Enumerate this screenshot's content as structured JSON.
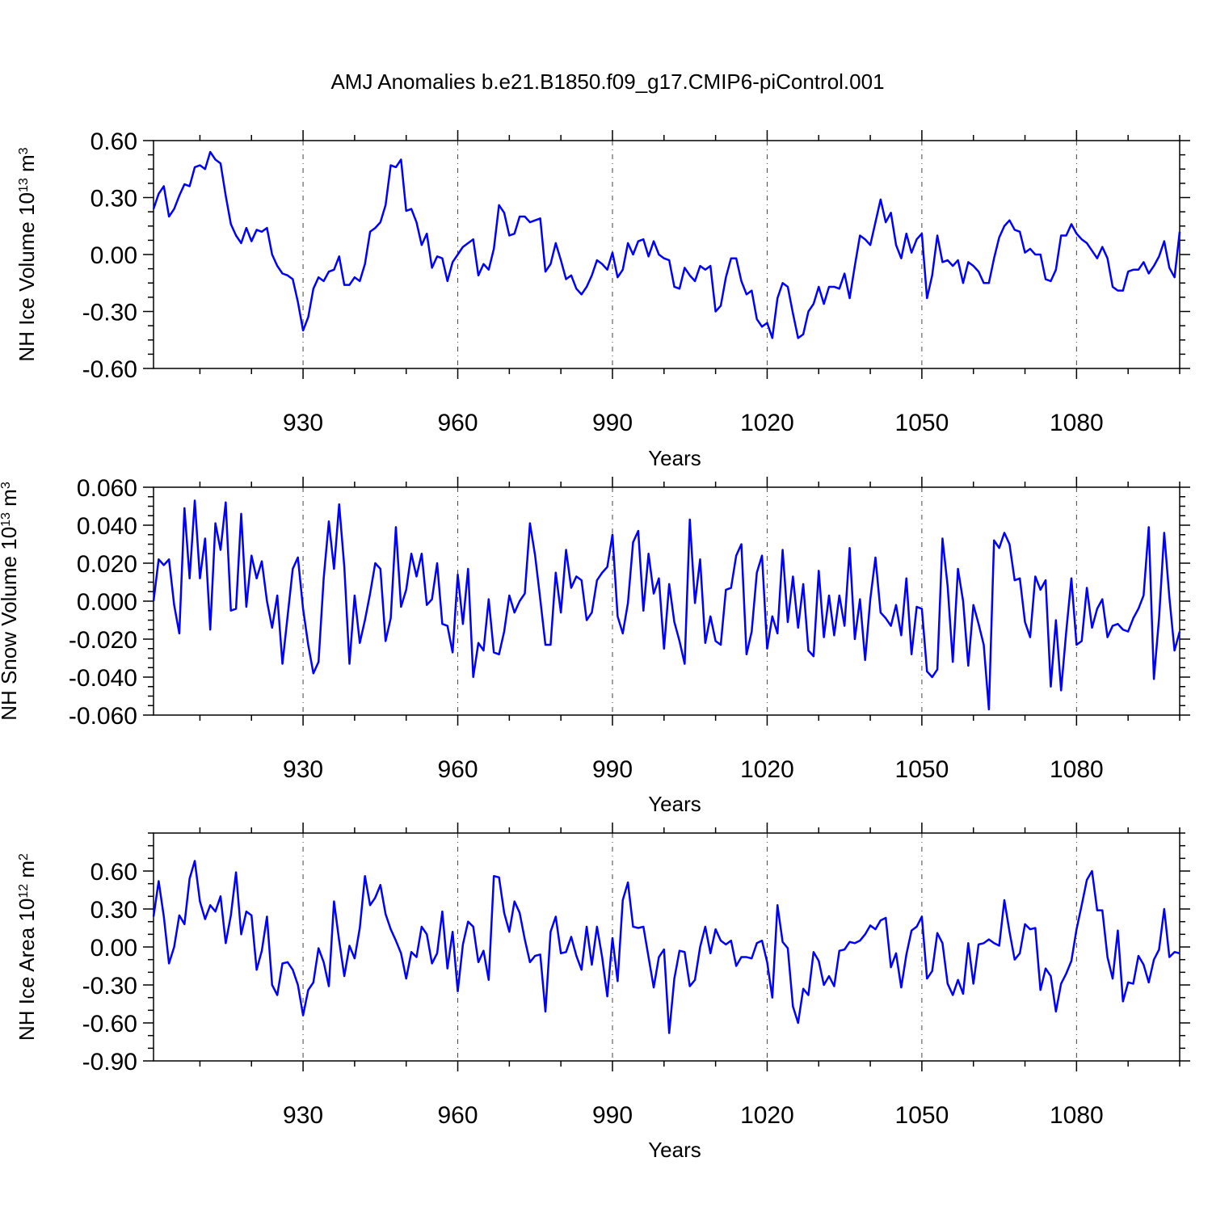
{
  "title": "AMJ Anomalies b.e21.B1850.f09_g17.CMIP6-piControl.001",
  "chart_data": [
    {
      "type": "line",
      "series_name": "NH Ice Volume",
      "ylabel": "NH Ice Volume",
      "ylabel_base": "10",
      "ylabel_exp": "13",
      "ylabel_unit": "m",
      "ylabel_unit_exp": "3",
      "xlabel": "Years",
      "xlim": [
        901,
        1100
      ],
      "ylim": [
        -0.6,
        0.6
      ],
      "yticks": [
        -0.6,
        -0.3,
        0.0,
        0.3,
        0.6
      ],
      "ytick_labels": [
        "-0.60",
        "-0.30",
        "0.00",
        "0.30",
        "0.60"
      ],
      "yminor_step": 0.075,
      "xticks": [
        930,
        960,
        990,
        1020,
        1050,
        1080
      ],
      "xtick_labels": [
        "930",
        "960",
        "990",
        "1020",
        "1050",
        "1080"
      ],
      "x_start": 901,
      "values": [
        0.24,
        0.32,
        0.36,
        0.2,
        0.24,
        0.31,
        0.37,
        0.36,
        0.46,
        0.47,
        0.45,
        0.54,
        0.5,
        0.48,
        0.31,
        0.16,
        0.1,
        0.06,
        0.14,
        0.07,
        0.13,
        0.12,
        0.14,
        0.0,
        -0.06,
        -0.1,
        -0.11,
        -0.13,
        -0.25,
        -0.4,
        -0.33,
        -0.18,
        -0.12,
        -0.14,
        -0.09,
        -0.08,
        -0.01,
        -0.16,
        -0.16,
        -0.12,
        -0.14,
        -0.05,
        0.12,
        0.14,
        0.17,
        0.26,
        0.47,
        0.46,
        0.5,
        0.23,
        0.24,
        0.17,
        0.05,
        0.11,
        -0.07,
        -0.01,
        -0.02,
        -0.14,
        -0.04,
        0.0,
        0.04,
        0.06,
        0.08,
        -0.11,
        -0.05,
        -0.08,
        0.03,
        0.26,
        0.22,
        0.1,
        0.11,
        0.2,
        0.2,
        0.17,
        0.18,
        0.19,
        -0.09,
        -0.05,
        0.06,
        -0.03,
        -0.13,
        -0.11,
        -0.18,
        -0.21,
        -0.17,
        -0.11,
        -0.03,
        -0.05,
        -0.08,
        0.01,
        -0.12,
        -0.08,
        0.06,
        0.0,
        0.07,
        0.08,
        -0.01,
        0.07,
        0.0,
        -0.02,
        -0.03,
        -0.17,
        -0.18,
        -0.07,
        -0.11,
        -0.14,
        -0.06,
        -0.08,
        -0.06,
        -0.3,
        -0.27,
        -0.12,
        -0.02,
        -0.02,
        -0.14,
        -0.21,
        -0.19,
        -0.34,
        -0.38,
        -0.36,
        -0.44,
        -0.23,
        -0.15,
        -0.17,
        -0.31,
        -0.44,
        -0.42,
        -0.3,
        -0.26,
        -0.17,
        -0.26,
        -0.17,
        -0.17,
        -0.18,
        -0.1,
        -0.23,
        -0.06,
        0.1,
        0.08,
        0.05,
        0.17,
        0.29,
        0.17,
        0.22,
        0.05,
        -0.02,
        0.11,
        0.01,
        0.08,
        0.11,
        -0.23,
        -0.11,
        0.1,
        -0.04,
        -0.03,
        -0.06,
        -0.03,
        -0.15,
        -0.04,
        -0.06,
        -0.09,
        -0.15,
        -0.15,
        -0.02,
        0.09,
        0.15,
        0.18,
        0.13,
        0.12,
        0.01,
        0.03,
        0.0,
        0.0,
        -0.13,
        -0.14,
        -0.08,
        0.1,
        0.1,
        0.16,
        0.11,
        0.08,
        0.06,
        0.02,
        -0.02,
        0.04,
        -0.02,
        -0.17,
        -0.19,
        -0.19,
        -0.09,
        -0.08,
        -0.08,
        -0.04,
        -0.1,
        -0.06,
        -0.01,
        0.07,
        -0.07,
        -0.12,
        0.12
      ]
    },
    {
      "type": "line",
      "series_name": "NH Snow Volume",
      "ylabel": "NH Snow Volume",
      "ylabel_base": "10",
      "ylabel_exp": "13",
      "ylabel_unit": "m",
      "ylabel_unit_exp": "3",
      "xlabel": "Years",
      "xlim": [
        901,
        1100
      ],
      "ylim": [
        -0.06,
        0.06
      ],
      "yticks": [
        -0.06,
        -0.04,
        -0.02,
        0.0,
        0.02,
        0.04,
        0.06
      ],
      "ytick_labels": [
        "-0.060",
        "-0.040",
        "-0.020",
        "0.000",
        "0.020",
        "0.040",
        "0.060"
      ],
      "yminor_step": 0.005,
      "xticks": [
        930,
        960,
        990,
        1020,
        1050,
        1080
      ],
      "xtick_labels": [
        "930",
        "960",
        "990",
        "1020",
        "1050",
        "1080"
      ],
      "x_start": 901,
      "values": [
        0.0,
        0.022,
        0.019,
        0.022,
        -0.002,
        -0.017,
        0.049,
        0.012,
        0.053,
        0.012,
        0.033,
        -0.015,
        0.041,
        0.027,
        0.052,
        -0.005,
        -0.004,
        0.046,
        -0.003,
        0.024,
        0.012,
        0.021,
        0.0,
        -0.014,
        0.003,
        -0.033,
        -0.008,
        0.017,
        0.023,
        -0.004,
        -0.023,
        -0.038,
        -0.032,
        0.012,
        0.042,
        0.017,
        0.051,
        0.018,
        -0.033,
        0.003,
        -0.022,
        -0.01,
        0.004,
        0.02,
        0.017,
        -0.021,
        -0.009,
        0.039,
        -0.003,
        0.006,
        0.025,
        0.013,
        0.025,
        -0.002,
        0.001,
        0.02,
        -0.012,
        -0.013,
        -0.027,
        0.014,
        -0.012,
        0.017,
        -0.04,
        -0.022,
        -0.026,
        0.001,
        -0.027,
        -0.028,
        -0.016,
        0.003,
        -0.006,
        0.0,
        0.004,
        0.041,
        0.024,
        0.001,
        -0.023,
        -0.023,
        0.015,
        -0.006,
        0.027,
        0.007,
        0.013,
        0.011,
        -0.01,
        -0.006,
        0.011,
        0.015,
        0.018,
        0.035,
        -0.008,
        -0.017,
        -0.001,
        0.031,
        0.037,
        -0.005,
        0.025,
        0.004,
        0.012,
        -0.025,
        0.009,
        -0.011,
        -0.021,
        -0.033,
        0.043,
        -0.001,
        0.022,
        -0.022,
        -0.008,
        -0.021,
        -0.023,
        0.006,
        0.007,
        0.024,
        0.03,
        -0.028,
        -0.016,
        0.015,
        0.024,
        -0.025,
        -0.008,
        -0.017,
        0.027,
        -0.011,
        0.013,
        -0.014,
        0.009,
        -0.026,
        -0.029,
        0.016,
        -0.019,
        0.003,
        -0.018,
        0.003,
        -0.013,
        0.028,
        -0.02,
        0.001,
        -0.031,
        0.001,
        0.023,
        -0.006,
        -0.009,
        -0.013,
        -0.002,
        -0.018,
        0.012,
        -0.028,
        -0.003,
        -0.004,
        -0.037,
        -0.04,
        -0.036,
        0.033,
        0.008,
        -0.032,
        0.017,
        0.0,
        -0.034,
        -0.002,
        -0.012,
        -0.023,
        -0.057,
        0.032,
        0.028,
        0.036,
        0.03,
        0.011,
        0.012,
        -0.011,
        -0.019,
        0.013,
        0.006,
        0.011,
        -0.045,
        -0.01,
        -0.047,
        -0.016,
        0.012,
        -0.023,
        -0.021,
        0.007,
        -0.014,
        -0.004,
        0.001,
        -0.019,
        -0.013,
        -0.012,
        -0.015,
        -0.016,
        -0.009,
        -0.004,
        0.003,
        0.039,
        -0.041,
        -0.009,
        0.036,
        0.002,
        -0.026,
        -0.016
      ]
    },
    {
      "type": "line",
      "series_name": "NH Ice Area",
      "ylabel": "NH Ice Area",
      "ylabel_base": "10",
      "ylabel_exp": "12",
      "ylabel_unit": "m",
      "ylabel_unit_exp": "2",
      "xlabel": "Years",
      "xlim": [
        901,
        1100
      ],
      "ylim": [
        -0.9,
        0.9
      ],
      "yticks": [
        -0.9,
        -0.6,
        -0.3,
        0.0,
        0.3,
        0.6
      ],
      "ytick_labels": [
        "-0.90",
        "-0.60",
        "-0.30",
        "0.00",
        "0.30",
        "0.60"
      ],
      "yminor_step": 0.1,
      "xticks": [
        930,
        960,
        990,
        1020,
        1050,
        1080
      ],
      "xtick_labels": [
        "930",
        "960",
        "990",
        "1020",
        "1050",
        "1080"
      ],
      "x_start": 901,
      "values": [
        0.24,
        0.52,
        0.24,
        -0.13,
        0.0,
        0.25,
        0.18,
        0.54,
        0.68,
        0.36,
        0.22,
        0.33,
        0.28,
        0.4,
        0.03,
        0.25,
        0.59,
        0.1,
        0.28,
        0.25,
        -0.18,
        -0.03,
        0.24,
        -0.3,
        -0.38,
        -0.13,
        -0.12,
        -0.18,
        -0.3,
        -0.54,
        -0.34,
        -0.28,
        -0.01,
        -0.12,
        -0.31,
        0.36,
        0.05,
        -0.23,
        0.01,
        -0.09,
        0.15,
        0.56,
        0.33,
        0.39,
        0.49,
        0.26,
        0.14,
        0.05,
        -0.05,
        -0.25,
        -0.04,
        -0.08,
        0.16,
        0.1,
        -0.13,
        -0.05,
        0.28,
        -0.17,
        0.12,
        -0.35,
        0.02,
        0.2,
        0.16,
        -0.12,
        -0.03,
        -0.26,
        0.56,
        0.55,
        0.27,
        0.12,
        0.36,
        0.27,
        0.06,
        -0.12,
        -0.07,
        -0.06,
        -0.51,
        0.12,
        0.24,
        -0.05,
        -0.04,
        0.08,
        -0.07,
        -0.18,
        0.16,
        -0.14,
        0.16,
        -0.08,
        -0.39,
        0.07,
        -0.27,
        0.37,
        0.51,
        0.16,
        0.15,
        0.16,
        -0.08,
        -0.32,
        -0.08,
        -0.02,
        -0.68,
        -0.25,
        -0.03,
        -0.04,
        -0.31,
        -0.26,
        0.0,
        0.16,
        -0.05,
        0.14,
        0.05,
        0.02,
        0.05,
        -0.15,
        -0.08,
        -0.08,
        -0.09,
        0.03,
        0.05,
        -0.12,
        -0.4,
        0.33,
        0.04,
        -0.01,
        -0.47,
        -0.6,
        -0.33,
        -0.38,
        -0.04,
        -0.11,
        -0.3,
        -0.23,
        -0.31,
        -0.03,
        -0.02,
        0.04,
        0.03,
        0.05,
        0.1,
        0.17,
        0.14,
        0.21,
        0.23,
        -0.16,
        -0.05,
        -0.32,
        -0.06,
        0.13,
        0.16,
        0.24,
        -0.25,
        -0.19,
        0.11,
        0.03,
        -0.29,
        -0.38,
        -0.26,
        -0.37,
        0.03,
        -0.29,
        0.02,
        0.03,
        0.06,
        0.03,
        0.01,
        0.37,
        0.12,
        -0.1,
        -0.05,
        0.18,
        0.14,
        0.15,
        -0.34,
        -0.17,
        -0.23,
        -0.51,
        -0.29,
        -0.21,
        -0.11,
        0.14,
        0.33,
        0.53,
        0.6,
        0.29,
        0.29,
        -0.08,
        -0.25,
        0.13,
        -0.43,
        -0.28,
        -0.29,
        -0.07,
        -0.14,
        -0.28,
        -0.1,
        -0.02,
        0.3,
        -0.08,
        -0.04,
        -0.05
      ]
    }
  ]
}
